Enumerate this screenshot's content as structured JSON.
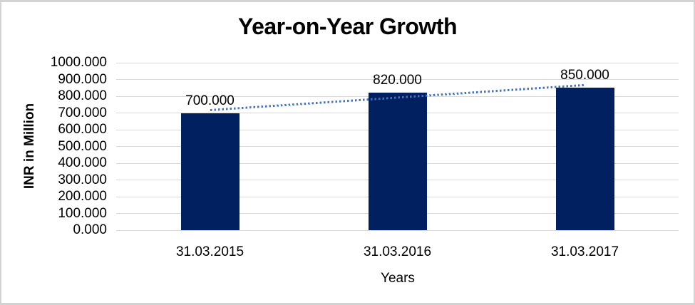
{
  "chart_data": {
    "type": "bar",
    "title": "Year-on-Year Growth",
    "categories": [
      "31.03.2015",
      "31.03.2016",
      "31.03.2017"
    ],
    "values": [
      700,
      820,
      850
    ],
    "value_labels": [
      "700.000",
      "820.000",
      "850.000"
    ],
    "xlabel": "Years",
    "ylabel": "INR in Million",
    "ylim": [
      0,
      1000
    ],
    "ytick_step": 100,
    "ytick_labels": [
      "1000.000",
      "900.000",
      "800.000",
      "700.000",
      "600.000",
      "500.000",
      "400.000",
      "300.000",
      "200.000",
      "100.000",
      "0.000"
    ],
    "grid": true,
    "legend": false,
    "trendline": {
      "type": "linear",
      "style": "dotted",
      "color": "#4472C4"
    },
    "colors": {
      "bar": "#002060",
      "gridline": "#D9D9D9",
      "frame_border": "#D3D3D3",
      "text": "#000000"
    }
  }
}
